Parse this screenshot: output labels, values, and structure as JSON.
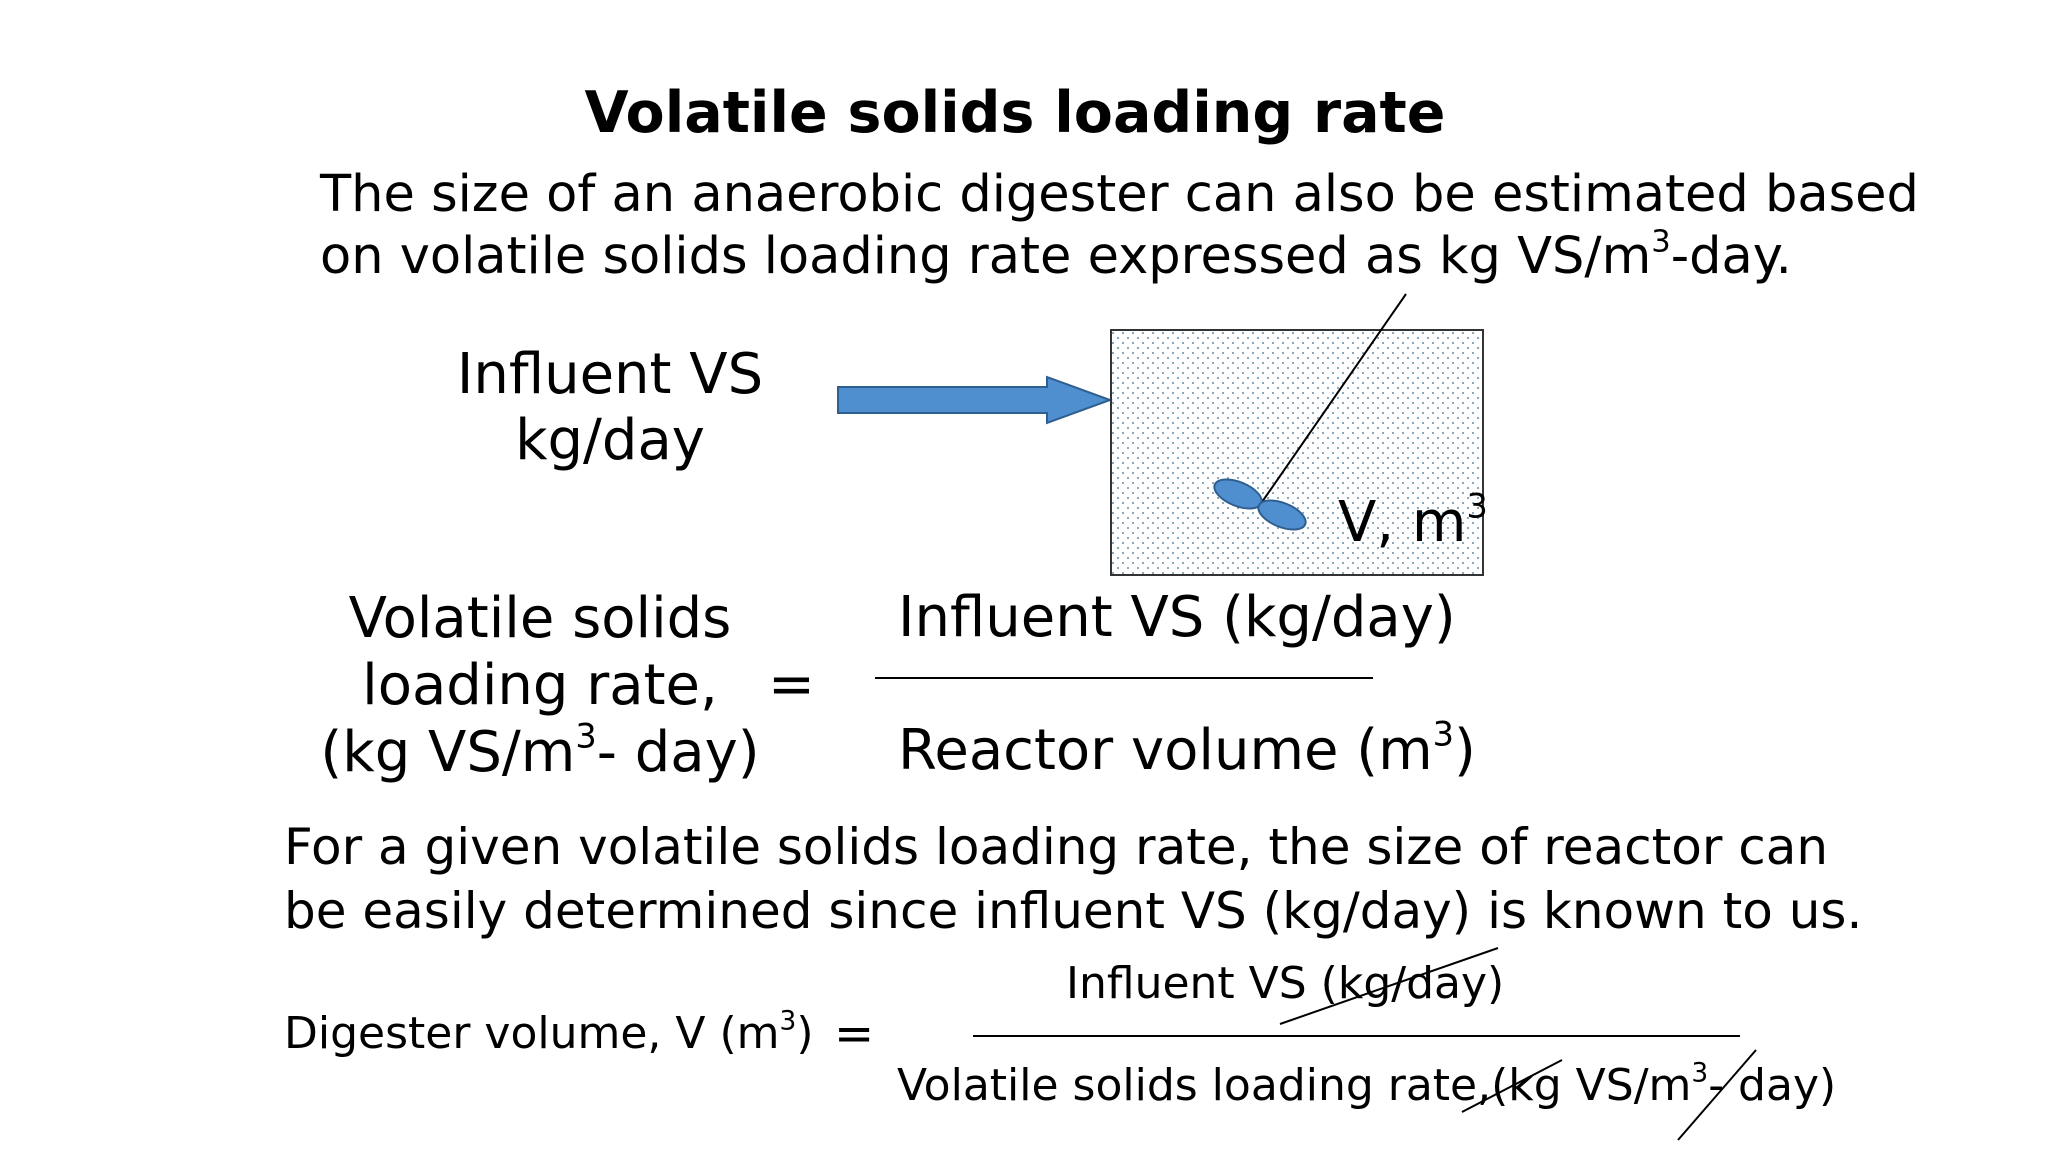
{
  "title": "Volatile solids loading rate",
  "intro": {
    "line1": "The size of an anaerobic digester can also be estimated based",
    "line2_pre": "on volatile solids loading rate expressed as kg VS/m",
    "line2_sup": "3",
    "line2_post": "-day."
  },
  "diagram": {
    "influent_line1": "Influent VS",
    "influent_line2": "kg/day",
    "volume_label": "V, m",
    "volume_sup": "3",
    "arrow_color": "#4f8fd0",
    "paddle_color": "#4f8fd0"
  },
  "formula1": {
    "lhs_line1": "Volatile solids",
    "lhs_line2": "loading rate,",
    "lhs_line3_pre": "(kg VS/m",
    "lhs_line3_sup": "3",
    "lhs_line3_post": "- day)",
    "equals": "=",
    "numerator": "Influent VS (kg/day)",
    "denominator_pre": "Reactor volume (m",
    "denominator_sup": "3",
    "denominator_post": ")"
  },
  "explanation": {
    "line1": "For a given volatile solids loading rate, the size of  reactor  can",
    "line2": "be easily determined since influent VS (kg/day) is known to us."
  },
  "formula2": {
    "lhs_pre": "Digester volume, V (m",
    "lhs_sup": "3",
    "lhs_post": ")",
    "equals": "=",
    "numerator": "Influent VS (kg/day)",
    "denominator_pre": "Volatile solids loading rate,(kg VS/m",
    "denominator_sup": "3",
    "denominator_post": "- day)"
  }
}
